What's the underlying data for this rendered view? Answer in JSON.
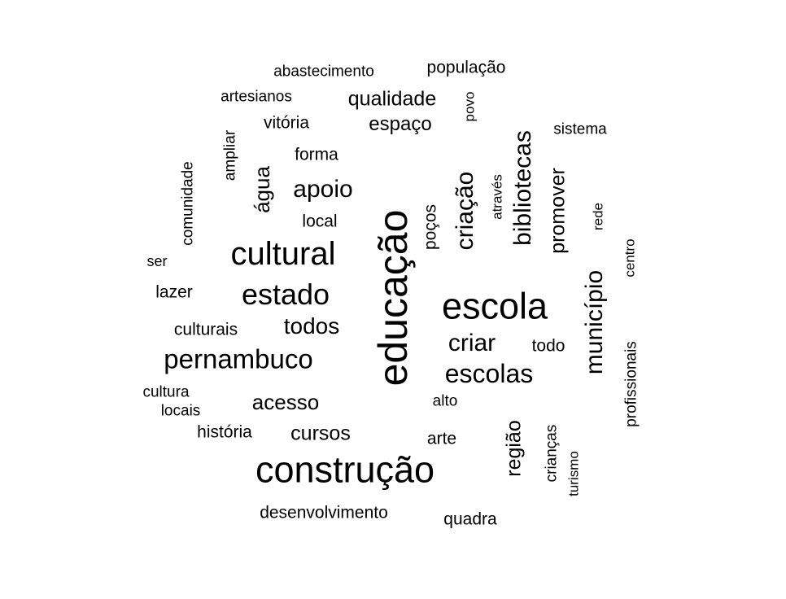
{
  "words": {
    "educacao": "educação",
    "construcao": "construção",
    "escola": "escola",
    "cultural": "cultural",
    "pernambuco": "pernambuco",
    "estado": "estado",
    "escolas": "escolas",
    "municipio": "município",
    "bibliotecas": "bibliotecas",
    "criacao": "criação",
    "apoio": "apoio",
    "criar": "criar",
    "todos": "todos",
    "acesso": "acesso",
    "cursos": "cursos",
    "agua": "água",
    "promover": "promover",
    "regiao": "região",
    "qualidade": "qualidade",
    "espaco": "espaço",
    "populacao": "população",
    "abastecimento": "abastecimento",
    "artesianos": "artesianos",
    "vitoria": "vitória",
    "povo": "povo",
    "sistema": "sistema",
    "forma": "forma",
    "ampliar": "ampliar",
    "comunidade": "comunidade",
    "local": "local",
    "pocos": "poços",
    "atraves": "através",
    "rede": "rede",
    "centro": "centro",
    "ser": "ser",
    "lazer": "lazer",
    "culturais": "culturais",
    "todo": "todo",
    "profissionais": "profissionais",
    "cultura": "cultura",
    "locais": "locais",
    "alto": "alto",
    "historia": "história",
    "arte": "arte",
    "criancas": "crianças",
    "turismo": "turismo",
    "desenvolvimento": "desenvolvimento",
    "quadra": "quadra"
  }
}
